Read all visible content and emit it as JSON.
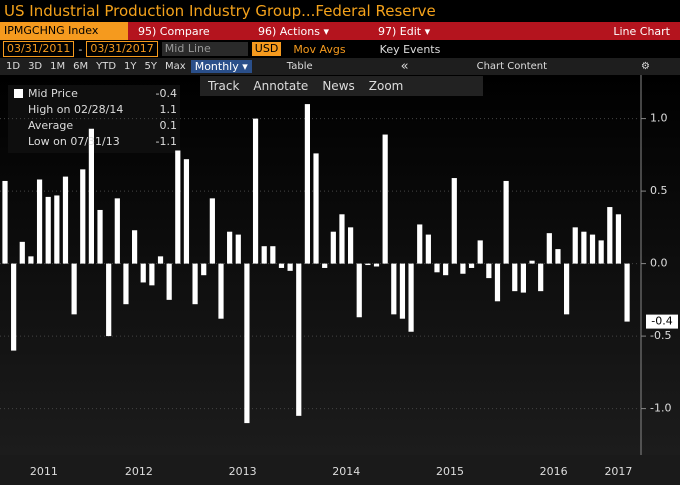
{
  "header": {
    "title": "US Industrial Production Industry Group...Federal Reserve"
  },
  "toolbar": {
    "ticker": "IPMGCHNG Index",
    "compare": "95) Compare",
    "actions": "96) Actions ▾",
    "edit": "97) Edit ▾",
    "chart_kind": "Line Chart"
  },
  "range_bar": {
    "start": "03/31/2011",
    "dash": "-",
    "end": "03/31/2017",
    "price_field": "Mid Line",
    "currency": "USD",
    "mov_avgs": "Mov Avgs",
    "key_events": "Key Events"
  },
  "period_bar": {
    "periods": [
      "1D",
      "3D",
      "1M",
      "6M",
      "YTD",
      "1Y",
      "5Y",
      "Max"
    ],
    "frequency": "Monthly ▾",
    "table": "Table",
    "collapse": "«",
    "chart_content": "Chart Content",
    "settings": "⚙"
  },
  "tools": [
    "Track",
    "Annotate",
    "News",
    "Zoom"
  ],
  "chart_data": {
    "type": "bar",
    "color": "#ffffff",
    "grid": true,
    "legend_box": [
      {
        "name": "Mid Price",
        "value": "-0.4"
      },
      {
        "name": "High on 02/28/14",
        "value": "1.1"
      },
      {
        "name": "Average",
        "value": "0.1"
      },
      {
        "name": "Low on 07/31/13",
        "value": "-1.1"
      }
    ],
    "values": [
      0.57,
      -0.6,
      0.15,
      0.05,
      0.58,
      0.46,
      0.47,
      0.6,
      -0.35,
      0.65,
      0.93,
      0.37,
      -0.5,
      0.45,
      -0.28,
      0.23,
      -0.13,
      -0.15,
      0.05,
      -0.25,
      0.78,
      0.72,
      -0.28,
      -0.08,
      0.45,
      -0.38,
      0.22,
      0.2,
      -1.1,
      1.0,
      0.12,
      0.12,
      -0.03,
      -0.05,
      -1.05,
      1.1,
      0.76,
      -0.03,
      0.22,
      0.34,
      0.25,
      -0.37,
      -0.01,
      -0.02,
      0.89,
      -0.35,
      -0.38,
      -0.47,
      0.27,
      0.2,
      -0.06,
      -0.08,
      0.59,
      -0.07,
      -0.03,
      0.16,
      -0.1,
      -0.26,
      0.57,
      -0.19,
      -0.2,
      0.02,
      -0.19,
      0.21,
      0.1,
      -0.35,
      0.25,
      0.22,
      0.2,
      0.16,
      0.39,
      0.34,
      -0.4
    ],
    "last_value_label": "-0.4",
    "xticks": [
      {
        "value": 4.5,
        "label": "2011"
      },
      {
        "value": 15.5,
        "label": "2012"
      },
      {
        "value": 27.5,
        "label": "2013"
      },
      {
        "value": 39.5,
        "label": "2014"
      },
      {
        "value": 51.5,
        "label": "2015"
      },
      {
        "value": 63.5,
        "label": "2016"
      },
      {
        "value": 71,
        "label": "2017"
      }
    ],
    "ylim": [
      -1.32,
      1.28
    ],
    "yticks": [
      {
        "value": 1,
        "label": "1.0"
      },
      {
        "value": 0.5,
        "label": "0.5"
      },
      {
        "value": 0,
        "label": "0.0"
      },
      {
        "value": -0.5,
        "label": "-0.5"
      },
      {
        "value": -1,
        "label": "-1.0"
      }
    ]
  }
}
